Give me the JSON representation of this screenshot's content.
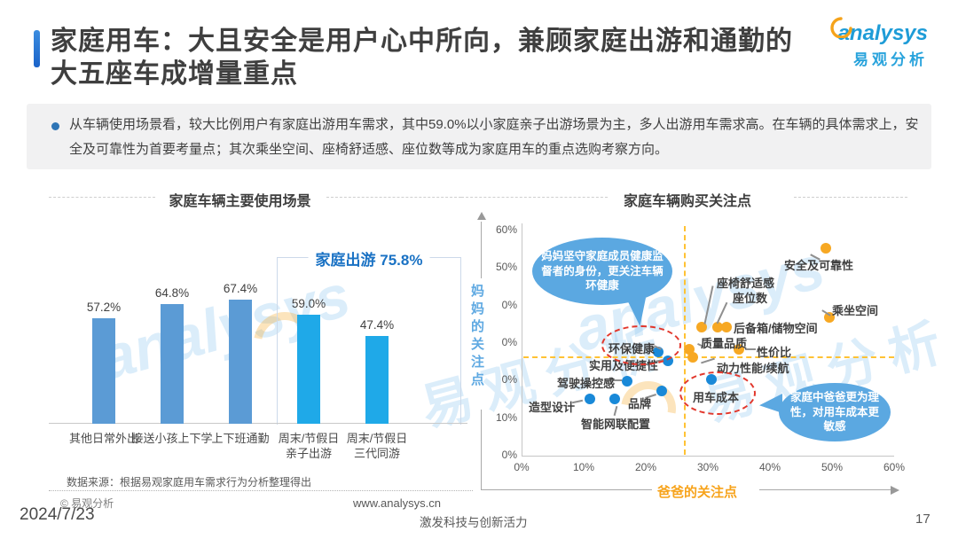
{
  "header": {
    "title_line1": "家庭用车：大且安全是用户心中所向，兼顾家庭出游和通勤的",
    "title_line2": "大五座车成增量重点",
    "logo_en": "analysys",
    "logo_cn": "易观分析"
  },
  "summary": {
    "text": "从车辆使用场景看，较大比例用户有家庭出游用车需求，其中59.0%以小家庭亲子出游场景为主，多人出游用车需求高。在车辆的具体需求上，安全及可靠性为首要考量点；其次乘坐空间、座椅舒适感、座位数等成为家庭用车的重点选购考察方向。"
  },
  "watermark": {
    "brand": "analysys",
    "brand_cn": "易观分析"
  },
  "chart_data": [
    {
      "type": "bar",
      "title": "家庭车辆主要使用场景",
      "categories": [
        "其他日常外出",
        "接送小孩上下学",
        "上下班通勤",
        "周末/节假日\n亲子出游",
        "周末/节假日\n三代同游"
      ],
      "values": [
        57.2,
        64.8,
        67.4,
        59.0,
        47.4
      ],
      "value_labels": [
        "57.2%",
        "64.8%",
        "67.4%",
        "59.0%",
        "47.4%"
      ],
      "bar_colors": [
        "#5B9BD5",
        "#5B9BD5",
        "#5B9BD5",
        "#1FA9E8",
        "#1FA9E8"
      ],
      "ylim": [
        0,
        80
      ],
      "grid": false,
      "bracket": {
        "label": "家庭出游 75.8%",
        "value": 75.8,
        "covers": [
          "周末/节假日 亲子出游",
          "周末/节假日 三代同游"
        ]
      }
    },
    {
      "type": "scatter",
      "title": "家庭车辆购买关注点",
      "xlabel": "爸爸的关注点",
      "ylabel": "妈妈的关注点",
      "xlim": [
        0,
        60
      ],
      "ylim": [
        0,
        60
      ],
      "x_ticks": [
        "0%",
        "10%",
        "20%",
        "30%",
        "40%",
        "50%",
        "60%"
      ],
      "y_ticks": [
        "60%",
        "50%",
        "0%",
        "0%",
        "0%",
        "10%",
        "0%"
      ],
      "quadrant_cross": {
        "x": 26.5,
        "y": 26
      },
      "series": [
        {
          "name": "妈妈的关注点",
          "color": "#1989D8",
          "points": [
            {
              "label": "环保健康",
              "x": 22,
              "y": 27.5,
              "highlighted": true
            },
            {
              "label": "实用及便捷性",
              "x": 23.5,
              "y": 25
            },
            {
              "label": "驾驶操控感",
              "x": 17,
              "y": 19.5
            },
            {
              "label": "品牌",
              "x": 22.5,
              "y": 17
            },
            {
              "label": "造型设计",
              "x": 11,
              "y": 15
            },
            {
              "label": "智能网联配置",
              "x": 15,
              "y": 15
            },
            {
              "label": "用车成本",
              "x": 30.5,
              "y": 20,
              "highlighted": true
            }
          ]
        },
        {
          "name": "爸爸的关注点",
          "color": "#F7A823",
          "points": [
            {
              "label": "安全及可靠性",
              "x": 49,
              "y": 55
            },
            {
              "label": "座椅舒适感",
              "x": 29,
              "y": 34
            },
            {
              "label": "座位数",
              "x": 31.5,
              "y": 34
            },
            {
              "label": "后备箱/储物空间",
              "x": 33,
              "y": 34
            },
            {
              "label": "乘坐空间",
              "x": 49.5,
              "y": 36.5
            },
            {
              "label": "质量品质",
              "x": 27,
              "y": 28
            },
            {
              "label": "动力性能/续航",
              "x": 27.5,
              "y": 26
            },
            {
              "label": "性价比",
              "x": 35,
              "y": 28
            }
          ]
        }
      ],
      "annotations": [
        {
          "text": "妈妈坚守家庭成员健康监督者的身份，更关注车辆环健康",
          "target": "环保健康"
        },
        {
          "text": "家庭中爸爸更为理性，对用车成本更敏感",
          "target": "用车成本"
        }
      ]
    }
  ],
  "footer": {
    "source": "数据来源：根据易观家庭用车需求行为分析整理得出",
    "copyright": "© 易观分析",
    "website": "www.analysys.cn",
    "date": "2024/7/23",
    "slogan": "激发科技与创新活力",
    "page_number": "17"
  }
}
